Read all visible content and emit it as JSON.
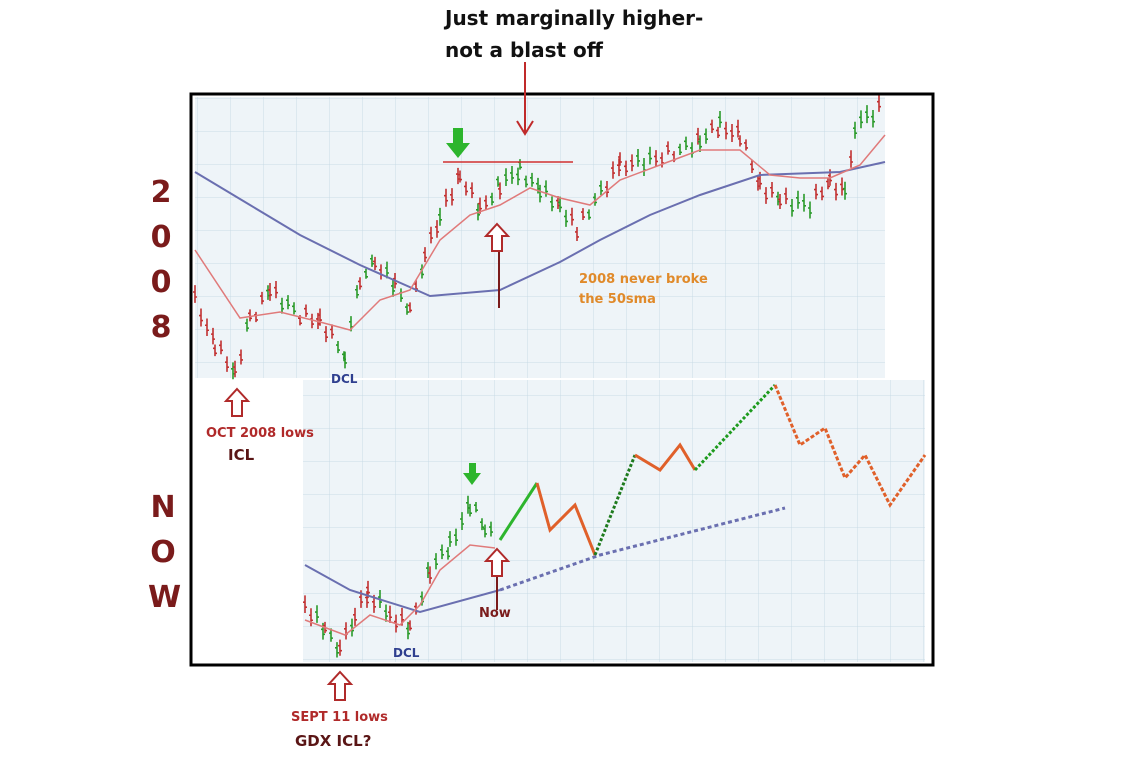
{
  "headline": {
    "lines": [
      "Just marginally higher-",
      "not a blast off"
    ]
  },
  "side_labels": {
    "top": "2008",
    "bottom": "NOW"
  },
  "top_panel": {
    "dcl": "DCL",
    "low_note": "OCT 2008 lows",
    "low_cycle": "ICL",
    "sma_note": [
      "2008 never broke",
      "the 50sma"
    ]
  },
  "bottom_panel": {
    "dcl": "DCL",
    "now": "Now",
    "low_note": "SEPT 11 lows",
    "low_cycle": "GDX ICL?"
  }
}
